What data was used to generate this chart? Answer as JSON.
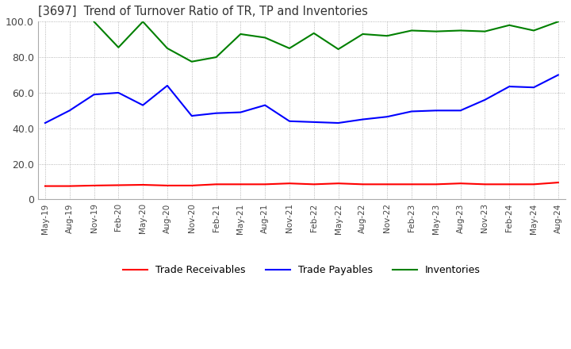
{
  "title": "[3697]  Trend of Turnover Ratio of TR, TP and Inventories",
  "x_labels": [
    "May-19",
    "Aug-19",
    "Nov-19",
    "Feb-20",
    "May-20",
    "Aug-20",
    "Nov-20",
    "Feb-21",
    "May-21",
    "Aug-21",
    "Nov-21",
    "Feb-22",
    "May-22",
    "Aug-22",
    "Nov-22",
    "Feb-23",
    "May-23",
    "Aug-23",
    "Nov-23",
    "Feb-24",
    "May-24",
    "Aug-24"
  ],
  "trade_receivables": [
    7.5,
    7.5,
    7.8,
    8.0,
    8.2,
    7.8,
    7.8,
    8.5,
    8.5,
    8.5,
    9.0,
    8.5,
    9.0,
    8.5,
    8.5,
    8.5,
    8.5,
    9.0,
    8.5,
    8.5,
    8.5,
    9.5
  ],
  "trade_payables": [
    43.0,
    50.0,
    59.0,
    60.0,
    53.0,
    64.0,
    47.0,
    48.5,
    49.0,
    53.0,
    44.0,
    43.5,
    43.0,
    45.0,
    46.5,
    49.5,
    50.0,
    50.0,
    56.0,
    63.5,
    63.0,
    70.0
  ],
  "inventories_x_labels": [
    "Nov-19",
    "Feb-20",
    "May-20",
    "Aug-20",
    "Nov-20",
    "Feb-21",
    "May-21",
    "Aug-21",
    "Nov-21",
    "Feb-22",
    "May-22",
    "Aug-22",
    "Nov-22",
    "Feb-23",
    "May-23",
    "Aug-23",
    "Nov-23",
    "Feb-24",
    "May-24",
    "Aug-24"
  ],
  "inventories_y": [
    100.0,
    85.5,
    100.0,
    85.0,
    77.5,
    80.0,
    93.0,
    91.0,
    85.0,
    93.5,
    84.5,
    93.0,
    92.0,
    95.0,
    94.5,
    95.0,
    94.5,
    98.0,
    95.0,
    100.0
  ],
  "ylim": [
    0,
    100
  ],
  "yticks": [
    0,
    20,
    40,
    60,
    80,
    100
  ],
  "ytick_labels": [
    "0",
    "20.0",
    "40.0",
    "60.0",
    "80.0",
    "100.0"
  ],
  "tr_color": "#ff0000",
  "tp_color": "#0000ff",
  "inv_color": "#008000",
  "background_color": "#ffffff",
  "grid_color": "#999999",
  "title_color": "#333333"
}
